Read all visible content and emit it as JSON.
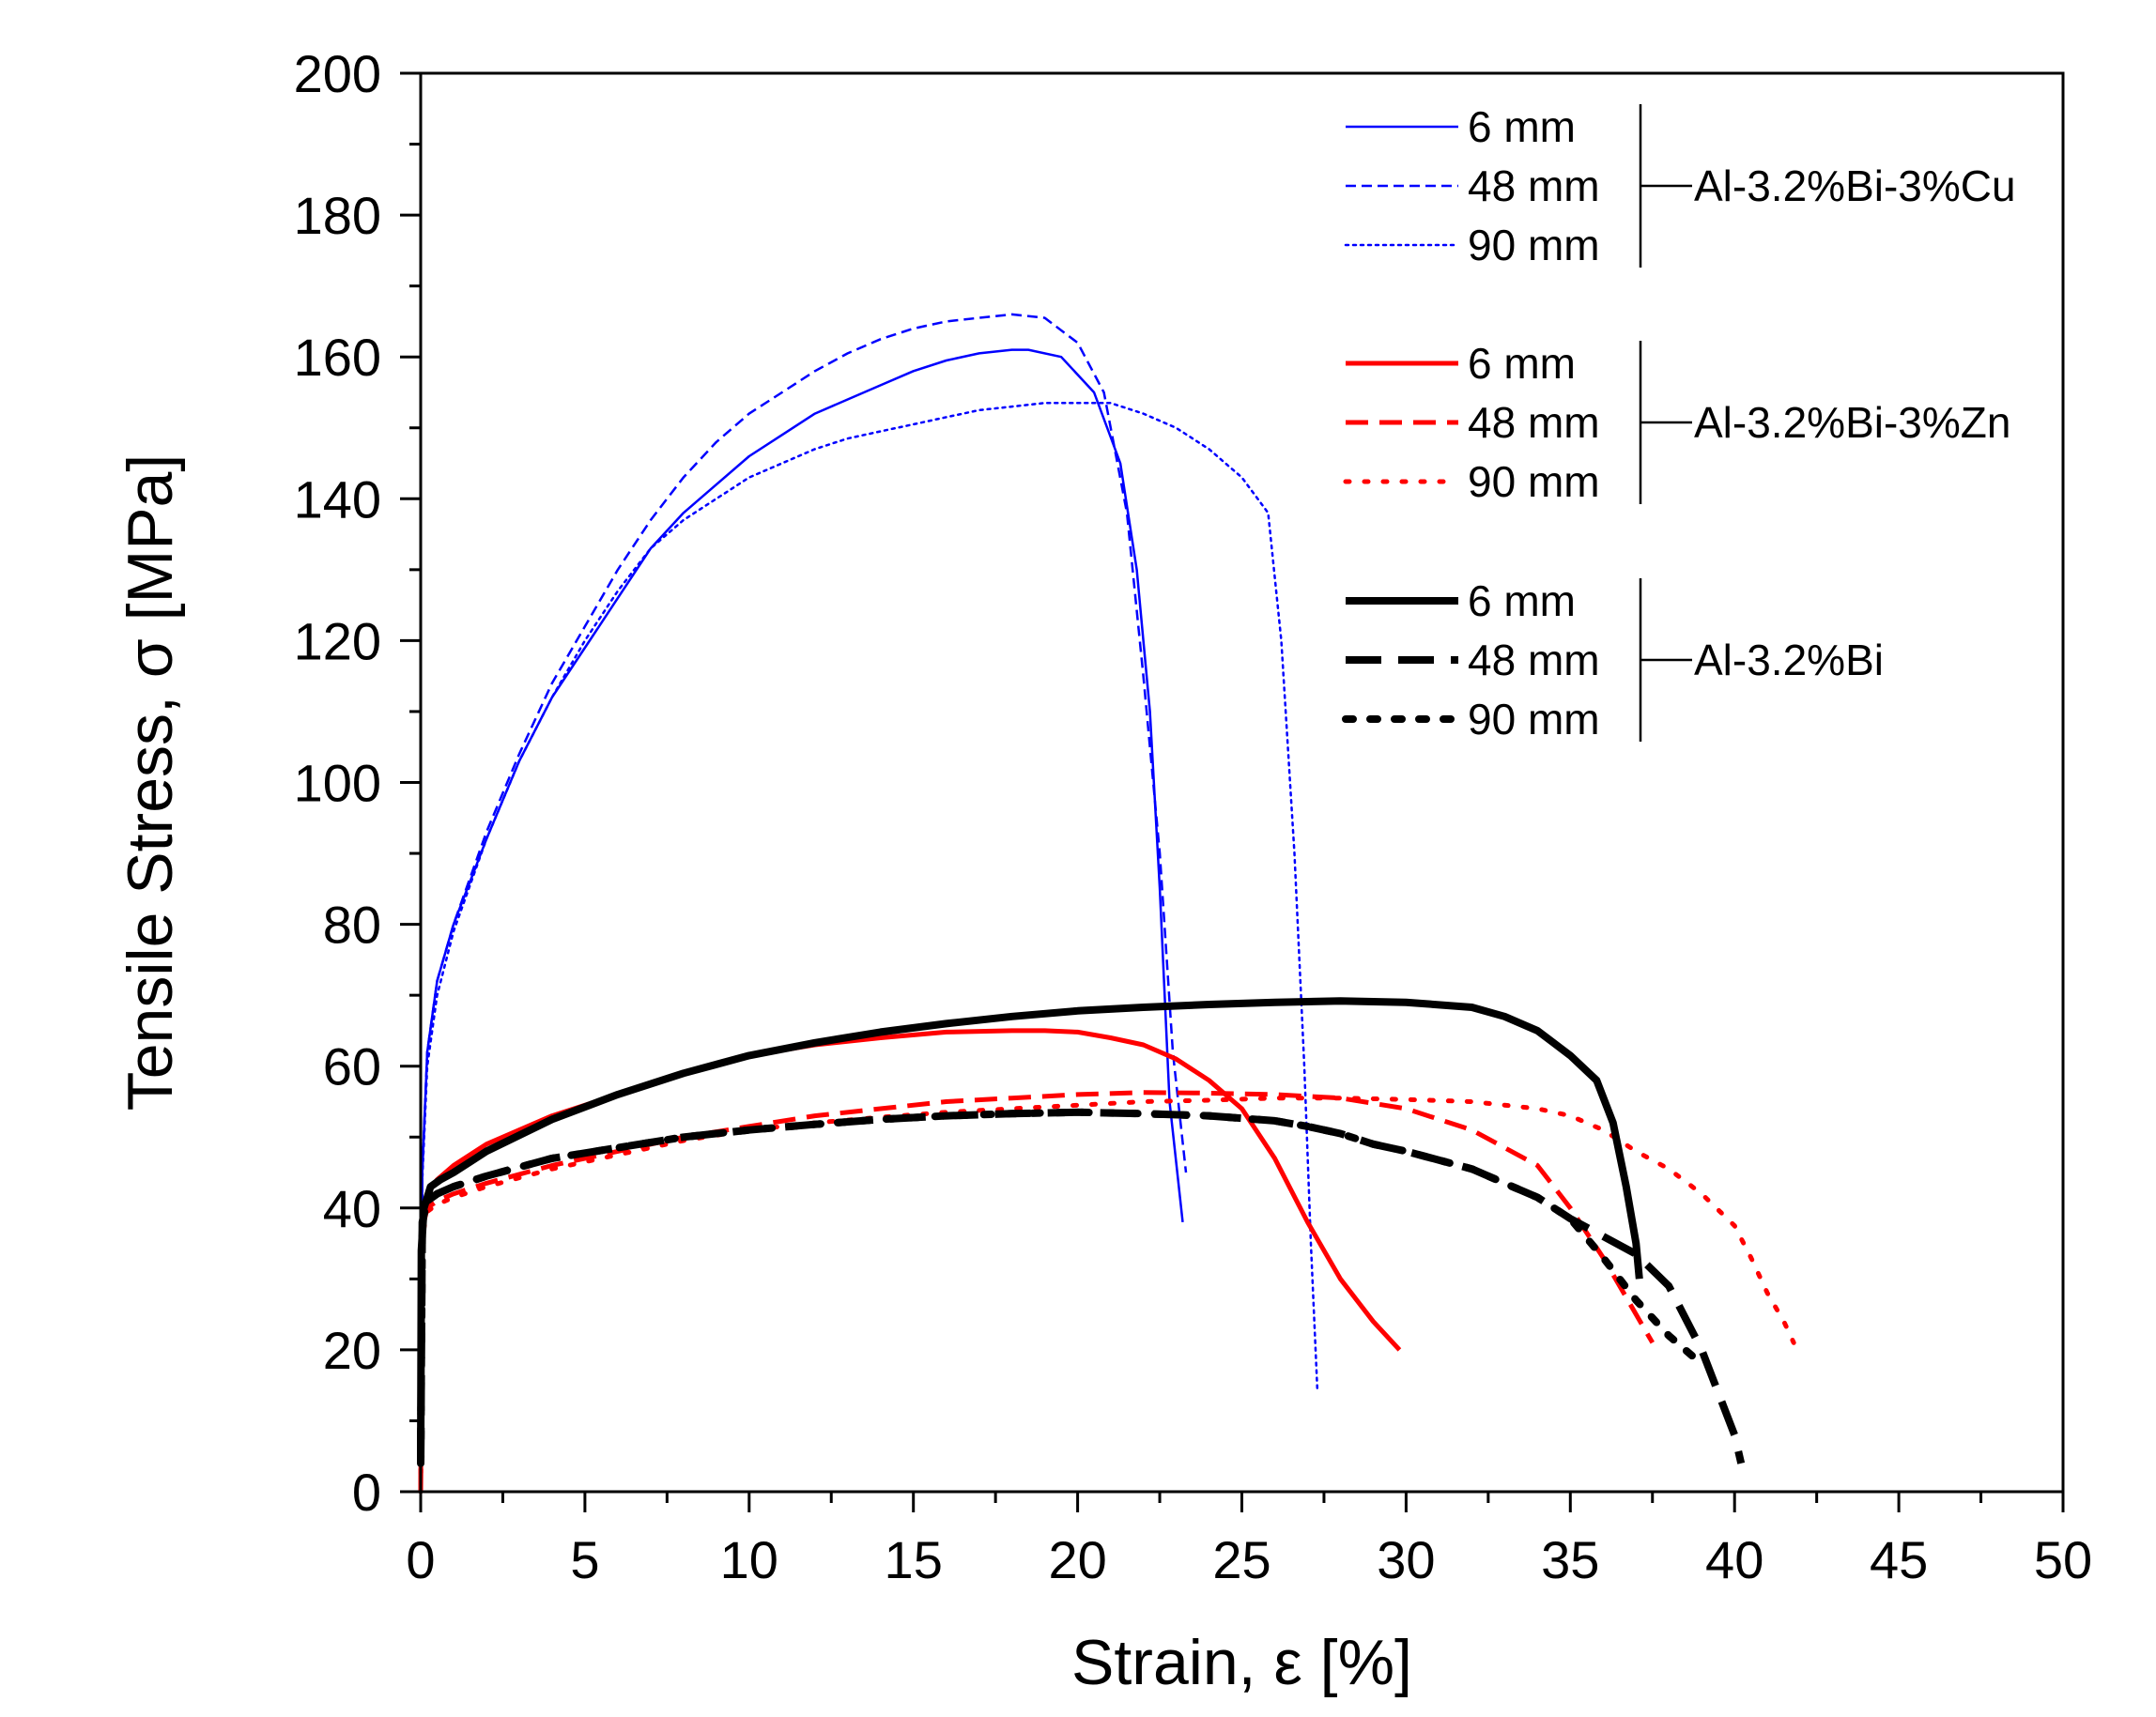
{
  "chart_data": {
    "type": "line",
    "title": "",
    "xlabel": "Strain, ε [%]",
    "ylabel": "Tensile Stress, σ [MPa]",
    "xlim": [
      0,
      50
    ],
    "ylim": [
      0,
      200
    ],
    "x_ticks": [
      0,
      5,
      10,
      15,
      20,
      25,
      30,
      35,
      40,
      45,
      50
    ],
    "y_ticks": [
      0,
      20,
      40,
      60,
      80,
      100,
      120,
      140,
      160,
      180,
      200
    ],
    "x_tick_labels": [
      "0",
      "5",
      "10",
      "15",
      "20",
      "25",
      "30",
      "35",
      "40",
      "45",
      "50"
    ],
    "y_tick_labels": [
      "0",
      "20",
      "40",
      "60",
      "80",
      "100",
      "120",
      "140",
      "160",
      "180",
      "200"
    ],
    "grid": false,
    "legend_placement": "top-right",
    "legend_groups": [
      {
        "group_label": "Al-3.2%Bi-3%Cu",
        "color": "#0000ff",
        "entries": [
          {
            "label": "6 mm",
            "style": "solid"
          },
          {
            "label": "48 mm",
            "style": "dashed"
          },
          {
            "label": "90 mm",
            "style": "dotted"
          }
        ]
      },
      {
        "group_label": "Al-3.2%Bi-3%Zn",
        "color": "#ff0000",
        "entries": [
          {
            "label": "6 mm",
            "style": "solid"
          },
          {
            "label": "48 mm",
            "style": "dashed"
          },
          {
            "label": "90 mm",
            "style": "dotted"
          }
        ]
      },
      {
        "group_label": "Al-3.2%Bi",
        "color": "#000000",
        "entries": [
          {
            "label": "6 mm",
            "style": "solid"
          },
          {
            "label": "48 mm",
            "style": "dashed"
          },
          {
            "label": "90 mm",
            "style": "dotted"
          }
        ]
      }
    ],
    "series": [
      {
        "name": "Al-3.2%Bi-3%Cu 6 mm",
        "color": "#0000ff",
        "style": "solid",
        "weight": "thin",
        "x": [
          0,
          0.05,
          0.2,
          0.5,
          1,
          2,
          3,
          4,
          5,
          6,
          7,
          8,
          9,
          10,
          11,
          12,
          13,
          14,
          15,
          16,
          17,
          18,
          18.5,
          19.5,
          20.5,
          21.3,
          21.8,
          22.2,
          22.5,
          22.8,
          23.2
        ],
        "y": [
          0,
          45,
          62,
          72,
          80,
          92,
          103,
          112,
          119,
          126,
          133,
          138,
          142,
          146,
          149,
          152,
          154,
          156,
          158,
          159.5,
          160.5,
          161,
          161,
          160,
          155,
          145,
          130,
          110,
          85,
          55,
          38
        ]
      },
      {
        "name": "Al-3.2%Bi-3%Cu 48 mm",
        "color": "#0000ff",
        "style": "dashed",
        "weight": "thin",
        "x": [
          0,
          0.05,
          0.2,
          0.5,
          1,
          2,
          3,
          4,
          5,
          6,
          7,
          8,
          9,
          10,
          11,
          12,
          13,
          14,
          15,
          16,
          17,
          18,
          19,
          20,
          20.8,
          21.5,
          22,
          22.5,
          22.9,
          23.3
        ],
        "y": [
          0,
          45,
          62,
          72,
          80,
          93,
          104,
          114,
          122,
          130,
          137,
          143,
          148,
          152,
          155,
          158,
          160.5,
          162.5,
          164,
          165,
          165.5,
          166,
          165.5,
          162,
          155,
          138,
          115,
          90,
          62,
          45
        ]
      },
      {
        "name": "Al-3.2%Bi-3%Cu 90 mm",
        "color": "#0000ff",
        "style": "dotted",
        "weight": "thin",
        "x": [
          0,
          0.05,
          0.2,
          0.5,
          1,
          2,
          3,
          4,
          5,
          6,
          7,
          8,
          9,
          10,
          11,
          12,
          13,
          14,
          15,
          16,
          17,
          18,
          19,
          20,
          21,
          22,
          23,
          24,
          25,
          25.8,
          26.2,
          26.6,
          26.9,
          27.1,
          27.3
        ],
        "y": [
          0,
          44,
          60,
          70,
          79,
          92,
          103,
          112,
          120,
          127,
          133,
          137,
          140,
          143,
          145,
          147,
          148.5,
          149.5,
          150.5,
          151.5,
          152.5,
          153,
          153.5,
          153.5,
          153.5,
          152,
          150,
          147,
          143,
          138,
          120,
          90,
          60,
          35,
          14
        ]
      },
      {
        "name": "Al-3.2%Bi-3%Zn 6 mm",
        "color": "#ff0000",
        "style": "solid",
        "weight": "medium",
        "x": [
          0,
          0.05,
          0.2,
          0.5,
          1,
          2,
          4,
          6,
          8,
          10,
          12,
          14,
          16,
          18,
          19,
          20,
          21,
          22,
          23,
          24,
          25,
          26,
          27,
          28,
          29,
          29.8
        ],
        "y": [
          0,
          37,
          42,
          44,
          46,
          49,
          53,
          56,
          59,
          61.5,
          63,
          64,
          64.8,
          65,
          65,
          64.8,
          64,
          63,
          61,
          58,
          54,
          47,
          38,
          30,
          24,
          20
        ]
      },
      {
        "name": "Al-3.2%Bi-3%Zn 48 mm",
        "color": "#ff0000",
        "style": "dashed",
        "weight": "medium",
        "x": [
          0,
          0.05,
          0.2,
          0.5,
          1,
          2,
          4,
          6,
          8,
          10,
          12,
          14,
          16,
          18,
          20,
          22,
          24,
          26,
          28,
          30,
          32,
          34,
          35,
          36,
          37,
          37.5
        ],
        "y": [
          0,
          37,
          40,
          41,
          42,
          43.5,
          46,
          48,
          50,
          51.5,
          53,
          54,
          55,
          55.5,
          56,
          56.3,
          56.2,
          56,
          55.5,
          54,
          51,
          46,
          40,
          33,
          25,
          21
        ]
      },
      {
        "name": "Al-3.2%Bi-3%Zn 90 mm",
        "color": "#ff0000",
        "style": "dotted",
        "weight": "medium",
        "x": [
          0,
          0.05,
          0.2,
          0.5,
          1,
          2,
          4,
          6,
          8,
          10,
          12,
          14,
          16,
          18,
          20,
          22,
          24,
          26,
          28,
          30,
          32,
          34,
          35,
          36,
          37,
          38,
          39,
          40,
          40.5,
          41,
          41.5,
          41.8
        ],
        "y": [
          0,
          36,
          39.5,
          40.5,
          41.5,
          43,
          45.5,
          47.5,
          49.5,
          51,
          52,
          52.8,
          53.5,
          54,
          54.5,
          55,
          55.2,
          55.5,
          55.5,
          55.3,
          55,
          54,
          53,
          51,
          48,
          45.5,
          42,
          37.5,
          33,
          28,
          24,
          21
        ]
      },
      {
        "name": "Al-3.2%Bi 6 mm",
        "color": "#000000",
        "style": "solid",
        "weight": "thick",
        "x": [
          0,
          0.02,
          0.1,
          0.3,
          0.6,
          1,
          2,
          4,
          6,
          8,
          10,
          12,
          14,
          16,
          18,
          20,
          22,
          24,
          26,
          28,
          30,
          32,
          33,
          34,
          35,
          35.8,
          36.3,
          36.7,
          37,
          37.1
        ],
        "y": [
          4,
          34,
          40,
          43,
          44,
          45,
          48,
          52.5,
          56,
          59,
          61.5,
          63.3,
          64.8,
          66,
          67,
          67.8,
          68.3,
          68.7,
          69,
          69.2,
          69,
          68.3,
          67,
          65,
          61.5,
          58,
          52,
          43,
          35,
          30
        ]
      },
      {
        "name": "Al-3.2%Bi 48 mm",
        "color": "#000000",
        "style": "dashed",
        "weight": "thick",
        "x": [
          0,
          0.05,
          0.2,
          0.5,
          1,
          2,
          4,
          6,
          8,
          10,
          12,
          14,
          16,
          18,
          20,
          22,
          24,
          26,
          27,
          28,
          29,
          30,
          32,
          33,
          34,
          35,
          36,
          37,
          38,
          39,
          39.5,
          40,
          40.2
        ],
        "y": [
          4,
          38,
          41,
          42,
          43,
          44.5,
          47,
          48.5,
          50,
          51,
          51.8,
          52.5,
          53,
          53.3,
          53.5,
          53.3,
          53,
          52.3,
          51.5,
          50.5,
          49,
          48,
          45.5,
          43.5,
          41.5,
          38.5,
          36,
          33.5,
          29,
          20,
          14,
          8,
          4
        ]
      },
      {
        "name": "Al-3.2%Bi 90 mm",
        "color": "#000000",
        "style": "dotted",
        "weight": "thick",
        "x": [
          0,
          0.05,
          0.2,
          0.5,
          1,
          2,
          4,
          6,
          8,
          10,
          12,
          14,
          16,
          18,
          20,
          22,
          24,
          26,
          27,
          28,
          29,
          30,
          32,
          33,
          34,
          35,
          36,
          37,
          38,
          38.5,
          39
        ],
        "y": [
          4,
          38,
          41,
          42,
          43,
          44.5,
          47,
          48.5,
          50,
          51,
          51.8,
          52.5,
          53,
          53.3,
          53.5,
          53.3,
          53,
          52.3,
          51.5,
          50.5,
          49,
          48,
          45.5,
          43.5,
          41.5,
          38.5,
          33,
          27,
          22,
          20,
          18
        ]
      }
    ]
  }
}
